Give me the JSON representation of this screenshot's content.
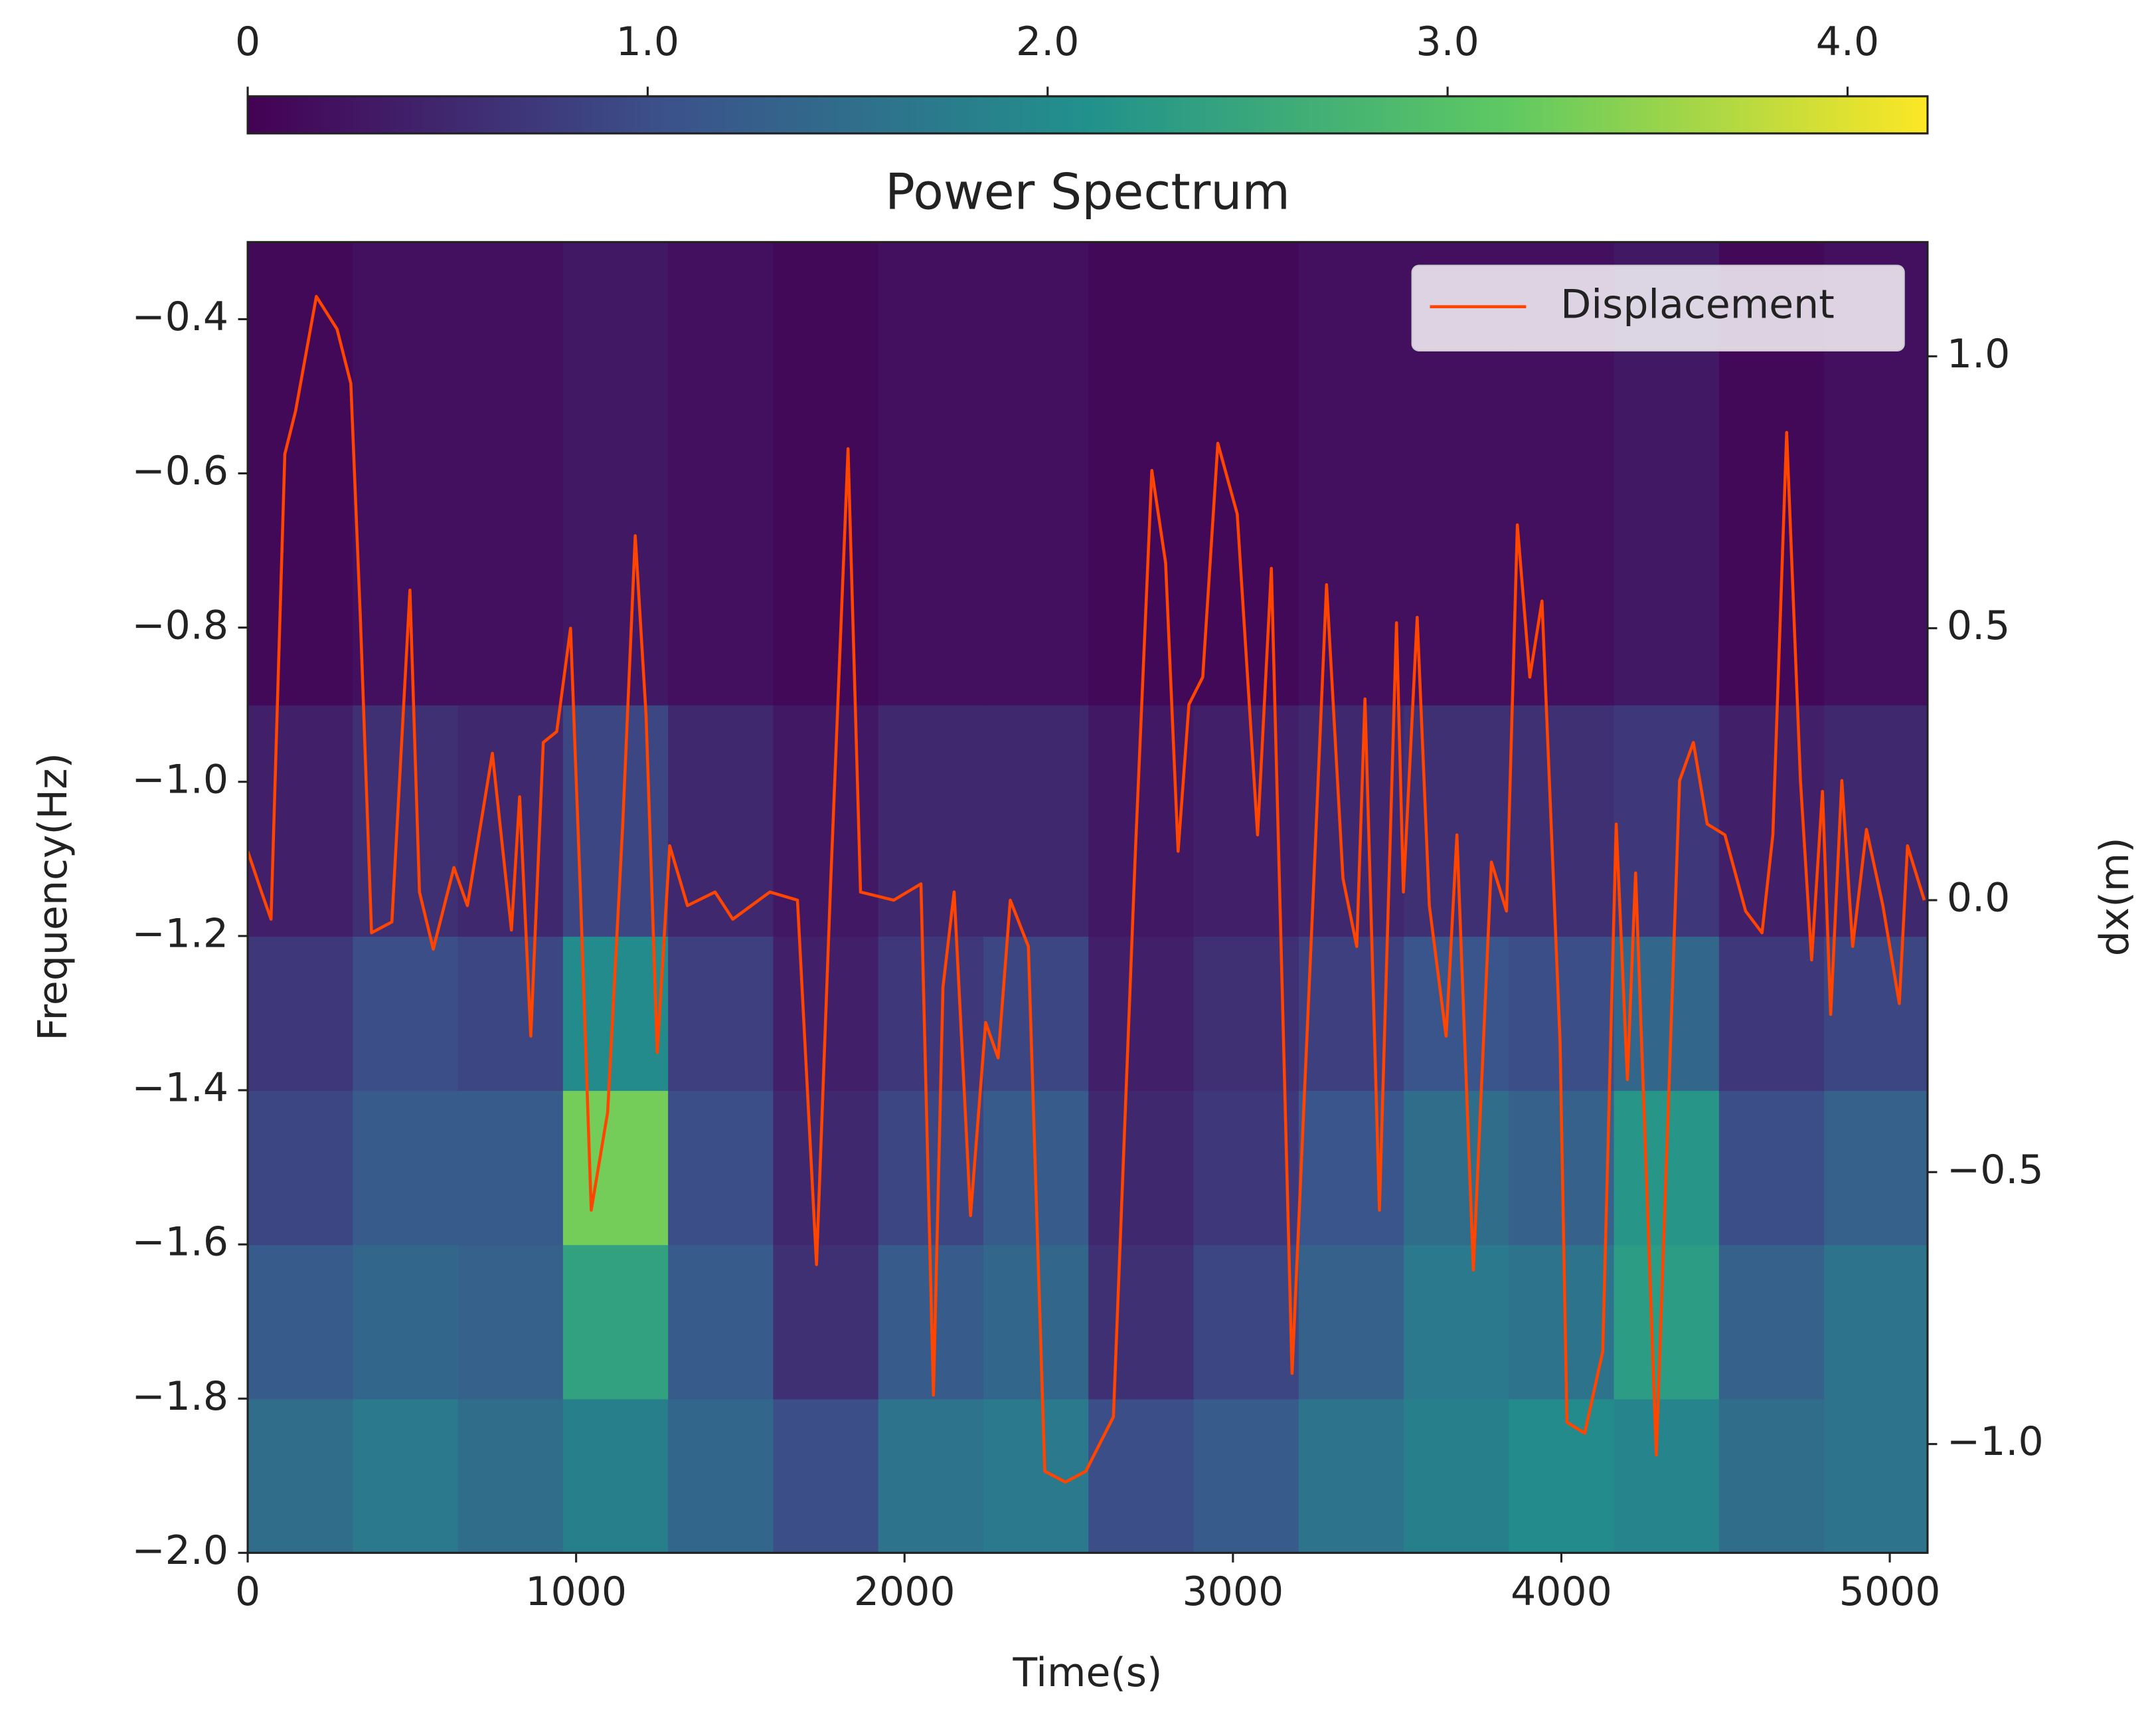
{
  "chart_data": {
    "type": "heatmap",
    "title": "Power Spectrum",
    "xlabel": "Time(s)",
    "ylabel": "Frequency(Hz)",
    "y2label": "dx(m)",
    "xlim": [
      0,
      5115
    ],
    "xticks": [
      0,
      1000,
      2000,
      3000,
      4000,
      5000
    ],
    "ylim": [
      -2.0,
      -0.3
    ],
    "yticks": [
      {
        "value": -2.0,
        "label": "−2.0"
      },
      {
        "value": -1.8,
        "label": "−1.8"
      },
      {
        "value": -1.6,
        "label": "−1.6"
      },
      {
        "value": -1.4,
        "label": "−1.4"
      },
      {
        "value": -1.2,
        "label": "−1.2"
      },
      {
        "value": -1.0,
        "label": "−1.0"
      },
      {
        "value": -0.8,
        "label": "−0.8"
      },
      {
        "value": -0.6,
        "label": "−0.6"
      },
      {
        "value": -0.4,
        "label": "−0.4"
      }
    ],
    "y2lim": [
      -1.2,
      1.21
    ],
    "y2ticks": [
      {
        "value": -1.0,
        "label": "−1.0"
      },
      {
        "value": -0.5,
        "label": "−0.5"
      },
      {
        "value": 0.0,
        "label": "0.0"
      },
      {
        "value": 0.5,
        "label": "0.5"
      },
      {
        "value": 1.0,
        "label": "1.0"
      }
    ],
    "colormap": "viridis",
    "clim": [
      0,
      4.2
    ],
    "cticks": [
      0,
      {
        "value": 1.0,
        "label": "1.0"
      },
      {
        "value": 2.0,
        "label": "2.0"
      },
      {
        "value": 3.0,
        "label": "3.0"
      },
      {
        "value": 4.0,
        "label": "4.0"
      }
    ],
    "x_edges": [
      0,
      320,
      640,
      960,
      1280,
      1600,
      1920,
      2240,
      2560,
      2880,
      3200,
      3520,
      3840,
      4160,
      4480,
      4800,
      5115
    ],
    "y_edges": [
      -2.0,
      -1.8,
      -1.6,
      -1.4,
      -1.2,
      -0.9,
      -0.3
    ],
    "z": [
      [
        1.5,
        1.7,
        1.5,
        1.8,
        1.4,
        1.0,
        1.6,
        1.7,
        1.0,
        1.2,
        1.6,
        1.8,
        2.0,
        1.9,
        1.5,
        1.6
      ],
      [
        1.2,
        1.4,
        1.3,
        2.4,
        1.2,
        0.6,
        1.2,
        1.4,
        0.6,
        0.9,
        1.3,
        1.7,
        1.6,
        2.3,
        1.3,
        1.6
      ],
      [
        0.9,
        1.2,
        1.2,
        3.3,
        1.0,
        0.5,
        0.9,
        1.2,
        0.5,
        0.7,
        1.1,
        1.5,
        1.3,
        2.2,
        1.0,
        1.3
      ],
      [
        0.7,
        1.0,
        0.9,
        2.0,
        0.8,
        0.4,
        0.7,
        0.9,
        0.4,
        0.6,
        0.8,
        1.1,
        1.0,
        1.4,
        0.7,
        0.9
      ],
      [
        0.4,
        0.6,
        0.5,
        0.9,
        0.5,
        0.3,
        0.5,
        0.5,
        0.3,
        0.4,
        0.5,
        0.6,
        0.6,
        0.7,
        0.4,
        0.5
      ],
      [
        0.1,
        0.2,
        0.2,
        0.3,
        0.2,
        0.1,
        0.2,
        0.2,
        0.1,
        0.1,
        0.2,
        0.2,
        0.2,
        0.3,
        0.1,
        0.2
      ]
    ],
    "legend": "upper right",
    "series": [
      {
        "name": "Displacement",
        "type": "line",
        "axis": "y2",
        "color": "#ff4500",
        "x": [
          0,
          42,
          71,
          113,
          146,
          209,
          272,
          314,
          343,
          377,
          439,
          494,
          523,
          565,
          628,
          669,
          745,
          803,
          828,
          862,
          900,
          941,
          983,
          1013,
          1046,
          1096,
          1142,
          1180,
          1213,
          1247,
          1285,
          1339,
          1423,
          1477,
          1590,
          1674,
          1732,
          1774,
          1828,
          1866,
          1967,
          2050,
          2088,
          2117,
          2151,
          2201,
          2247,
          2285,
          2322,
          2377,
          2427,
          2490,
          2552,
          2636,
          2703,
          2753,
          2795,
          2833,
          2866,
          2908,
          2954,
          3013,
          3075,
          3117,
          3180,
          3243,
          3285,
          3335,
          3377,
          3402,
          3446,
          3498,
          3519,
          3561,
          3598,
          3649,
          3682,
          3732,
          3787,
          3833,
          3866,
          3904,
          3941,
          3996,
          4017,
          4071,
          4126,
          4167,
          4201,
          4226,
          4289,
          4360,
          4402,
          4444,
          4498,
          4561,
          4611,
          4644,
          4686,
          4728,
          4762,
          4795,
          4820,
          4854,
          4887,
          4929,
          4979,
          5029,
          5054,
          5105
        ],
        "values": [
          0.09,
          0.015,
          -0.035,
          0.82,
          0.9,
          1.11,
          1.05,
          0.95,
          0.52,
          -0.06,
          -0.04,
          0.57,
          0.015,
          -0.09,
          0.06,
          -0.01,
          0.27,
          -0.055,
          0.19,
          -0.25,
          0.29,
          0.31,
          0.5,
          0.015,
          -0.57,
          -0.39,
          0.14,
          0.67,
          0.34,
          -0.28,
          0.1,
          -0.01,
          0.015,
          -0.035,
          0.015,
          0.0,
          -0.67,
          0.015,
          0.83,
          0.015,
          0.0,
          0.03,
          -0.91,
          -0.16,
          0.015,
          -0.58,
          -0.225,
          -0.29,
          0.0,
          -0.085,
          -1.05,
          -1.07,
          -1.05,
          -0.95,
          0.09,
          0.79,
          0.62,
          0.09,
          0.36,
          0.41,
          0.84,
          0.71,
          0.12,
          0.61,
          -0.87,
          -0.01,
          0.58,
          0.04,
          -0.085,
          0.37,
          -0.57,
          0.51,
          0.015,
          0.52,
          -0.01,
          -0.25,
          0.12,
          -0.68,
          0.07,
          -0.02,
          0.69,
          0.41,
          0.55,
          -0.26,
          -0.96,
          -0.98,
          -0.83,
          0.14,
          -0.33,
          0.05,
          -1.02,
          0.22,
          0.29,
          0.14,
          0.12,
          -0.02,
          -0.06,
          0.12,
          0.86,
          0.22,
          -0.11,
          0.2,
          -0.21,
          0.22,
          -0.085,
          0.13,
          -0.01,
          -0.19,
          0.1,
          0.0
        ]
      }
    ]
  }
}
